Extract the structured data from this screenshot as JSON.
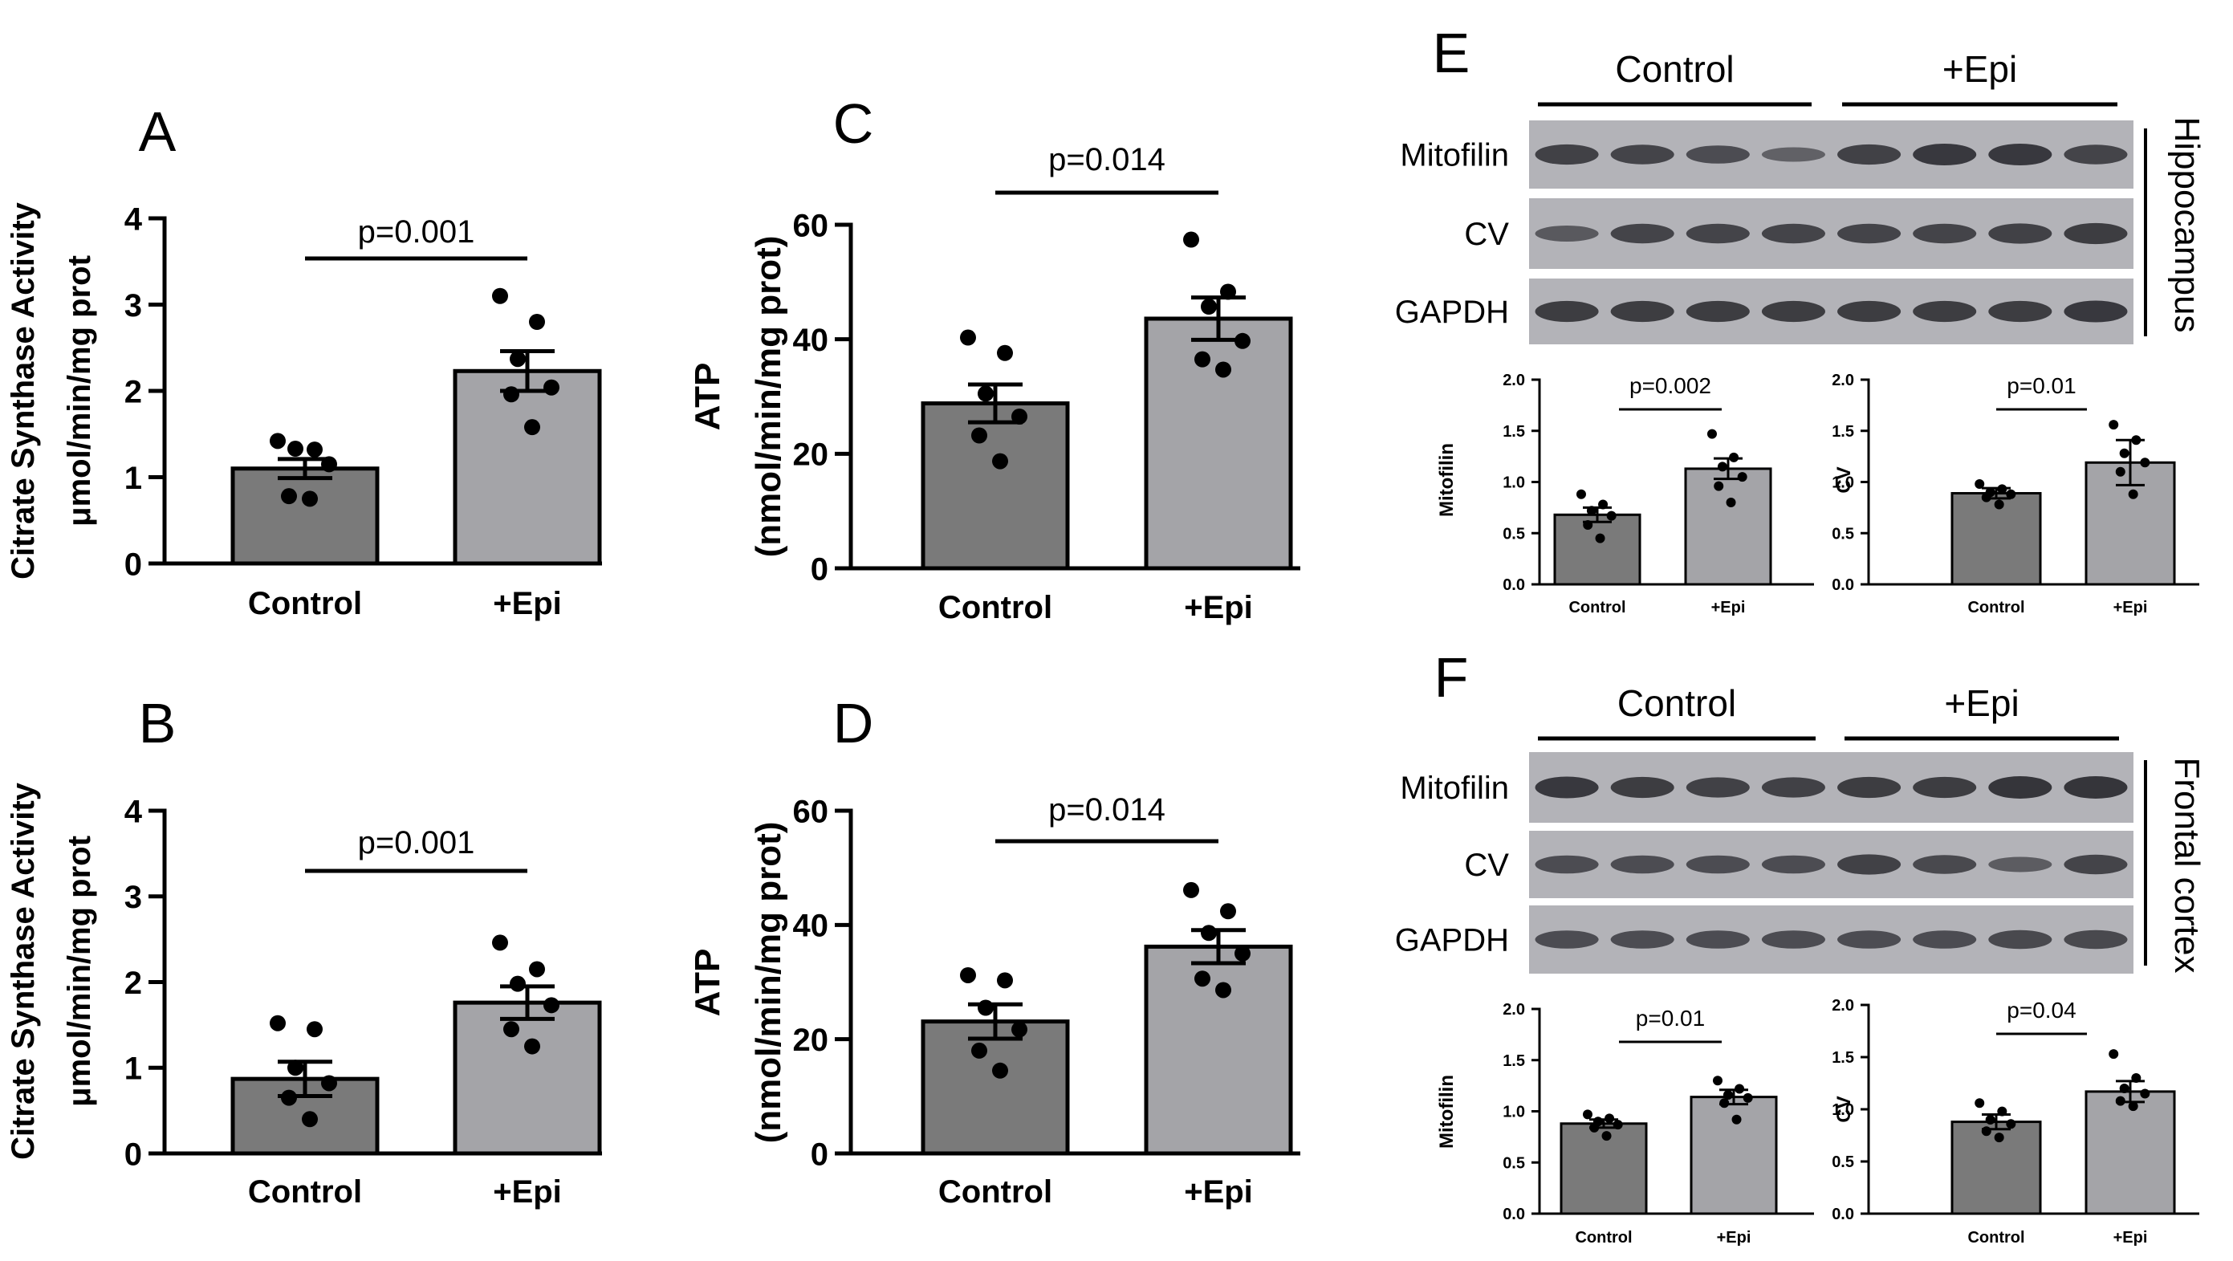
{
  "colors": {
    "control_bar": "#7a7a7a",
    "epi_bar": "#a4a4a8",
    "band_bg": "#b3b3b8",
    "band": "#2e2e33",
    "ink": "#000000"
  },
  "chart_data": [
    {
      "panel": "A",
      "type": "bar",
      "categories": [
        "Control",
        "+Epi"
      ],
      "values": [
        1.1,
        2.23
      ],
      "sem": [
        0.11,
        0.23
      ],
      "points": [
        [
          1.42,
          1.32,
          1.33,
          1.15,
          0.78,
          0.75
        ],
        [
          3.1,
          2.8,
          2.37,
          2.04,
          1.96,
          1.58
        ]
      ],
      "ylabel_line1": "Citrate Synthase Activity",
      "ylabel_line2": "μmol/min/mg prot",
      "ylim": [
        0,
        4
      ],
      "yticks": [
        "0",
        "1",
        "2",
        "3",
        "4"
      ],
      "pvalue": "p=0.001"
    },
    {
      "panel": "B",
      "type": "bar",
      "categories": [
        "Control",
        "+Epi"
      ],
      "values": [
        0.87,
        1.76
      ],
      "sem": [
        0.2,
        0.19
      ],
      "points": [
        [
          1.52,
          1.45,
          1.0,
          0.82,
          0.65,
          0.4
        ],
        [
          2.46,
          2.15,
          1.98,
          1.73,
          1.45,
          1.25
        ]
      ],
      "ylabel_line1": "Citrate Synthase Activity",
      "ylabel_line2": "μmol/min/mg prot",
      "ylim": [
        0,
        4
      ],
      "yticks": [
        "0",
        "1",
        "2",
        "3",
        "4"
      ],
      "pvalue": "p=0.001"
    },
    {
      "panel": "C",
      "type": "bar",
      "categories": [
        "Control",
        "+Epi"
      ],
      "values": [
        28.8,
        43.6
      ],
      "sem": [
        3.3,
        3.7
      ],
      "points": [
        [
          40.3,
          37.6,
          30.5,
          26.5,
          23.2,
          18.7
        ],
        [
          57.4,
          48.3,
          45.7,
          39.7,
          36.5,
          34.7
        ]
      ],
      "ylabel_line1": "ATP",
      "ylabel_line2": "(nmol/min/mg prot)",
      "ylim": [
        0,
        60
      ],
      "yticks": [
        "0",
        "20",
        "40",
        "60"
      ],
      "pvalue": "p=0.014"
    },
    {
      "panel": "D",
      "type": "bar",
      "categories": [
        "Control",
        "+Epi"
      ],
      "values": [
        23.1,
        36.2
      ],
      "sem": [
        3.0,
        2.9
      ],
      "points": [
        [
          31.2,
          30.3,
          25.5,
          21.7,
          18.0,
          14.5
        ],
        [
          46.1,
          42.4,
          38.6,
          35.0,
          30.6,
          28.6
        ]
      ],
      "ylabel_line1": "ATP",
      "ylabel_line2": "(nmol/min/mg prot)",
      "ylim": [
        0,
        60
      ],
      "yticks": [
        "0",
        "20",
        "40",
        "60"
      ],
      "pvalue": "p=0.014"
    },
    {
      "panel": "E-mitofilin",
      "type": "bar",
      "categories": [
        "Control",
        "+Epi"
      ],
      "values": [
        0.68,
        1.13
      ],
      "sem": [
        0.07,
        0.1
      ],
      "points": [
        [
          0.88,
          0.78,
          0.72,
          0.67,
          0.58,
          0.45
        ],
        [
          1.47,
          1.24,
          1.15,
          1.05,
          0.96,
          0.8
        ]
      ],
      "ylabel": "Mitofilin",
      "ylim": [
        0,
        2
      ],
      "yticks": [
        "0.0",
        "0.5",
        "1.0",
        "1.5",
        "2.0"
      ],
      "pvalue": "p=0.002"
    },
    {
      "panel": "E-cv",
      "type": "bar",
      "categories": [
        "Control",
        "+Epi"
      ],
      "values": [
        0.89,
        1.19
      ],
      "sem": [
        0.05,
        0.22
      ],
      "points": [
        [
          0.98,
          0.93,
          0.9,
          0.88,
          0.85,
          0.78
        ],
        [
          1.56,
          1.41,
          1.28,
          1.19,
          1.1,
          0.88
        ]
      ],
      "ylabel": "CV",
      "ylim": [
        0,
        2
      ],
      "yticks": [
        "0.0",
        "0.5",
        "1.0",
        "1.5",
        "2.0"
      ],
      "pvalue": "p=0.01"
    },
    {
      "panel": "F-mitofilin",
      "type": "bar",
      "categories": [
        "Control",
        "+Epi"
      ],
      "values": [
        0.88,
        1.14
      ],
      "sem": [
        0.04,
        0.07
      ],
      "points": [
        [
          0.97,
          0.93,
          0.9,
          0.87,
          0.84,
          0.76
        ],
        [
          1.3,
          1.22,
          1.16,
          1.13,
          1.08,
          0.92
        ]
      ],
      "ylabel": "Mitofilin",
      "ylim": [
        0,
        2
      ],
      "yticks": [
        "0.0",
        "0.5",
        "1.0",
        "1.5",
        "2.0"
      ],
      "pvalue": "p=0.01"
    },
    {
      "panel": "F-cv",
      "type": "bar",
      "categories": [
        "Control",
        "+Epi"
      ],
      "values": [
        0.88,
        1.17
      ],
      "sem": [
        0.07,
        0.1
      ],
      "points": [
        [
          1.06,
          0.98,
          0.9,
          0.86,
          0.79,
          0.73
        ],
        [
          1.53,
          1.3,
          1.2,
          1.15,
          1.08,
          1.03
        ]
      ],
      "ylabel": "CV",
      "ylim": [
        0,
        2
      ],
      "yticks": [
        "0.0",
        "0.5",
        "1.0",
        "1.5",
        "2.0"
      ],
      "pvalue": "p=0.04"
    }
  ],
  "panel_letters": [
    "A",
    "B",
    "C",
    "D",
    "E",
    "F"
  ],
  "blots": [
    {
      "panel": "E",
      "region": "Hippocampus",
      "groups": [
        "Control",
        "+Epi"
      ],
      "rows": [
        {
          "label": "Mitofilin",
          "intensity": [
            0.85,
            0.8,
            0.7,
            0.45,
            0.85,
            0.95,
            0.95,
            0.8
          ]
        },
        {
          "label": "CV",
          "intensity": [
            0.55,
            0.8,
            0.8,
            0.8,
            0.8,
            0.8,
            0.85,
            0.9
          ]
        },
        {
          "label": "GAPDH",
          "intensity": [
            0.9,
            0.9,
            0.9,
            0.9,
            0.9,
            0.9,
            0.9,
            0.95
          ]
        }
      ]
    },
    {
      "panel": "F",
      "region": "Frontal cortex",
      "groups": [
        "Control",
        "+Epi"
      ],
      "rows": [
        {
          "label": "Mitofilin",
          "intensity": [
            0.95,
            0.9,
            0.85,
            0.85,
            0.9,
            0.9,
            1.0,
            1.0
          ]
        },
        {
          "label": "CV",
          "intensity": [
            0.7,
            0.7,
            0.7,
            0.7,
            0.85,
            0.75,
            0.5,
            0.8
          ]
        },
        {
          "label": "GAPDH",
          "intensity": [
            0.7,
            0.7,
            0.7,
            0.7,
            0.7,
            0.7,
            0.75,
            0.75
          ]
        }
      ]
    }
  ]
}
